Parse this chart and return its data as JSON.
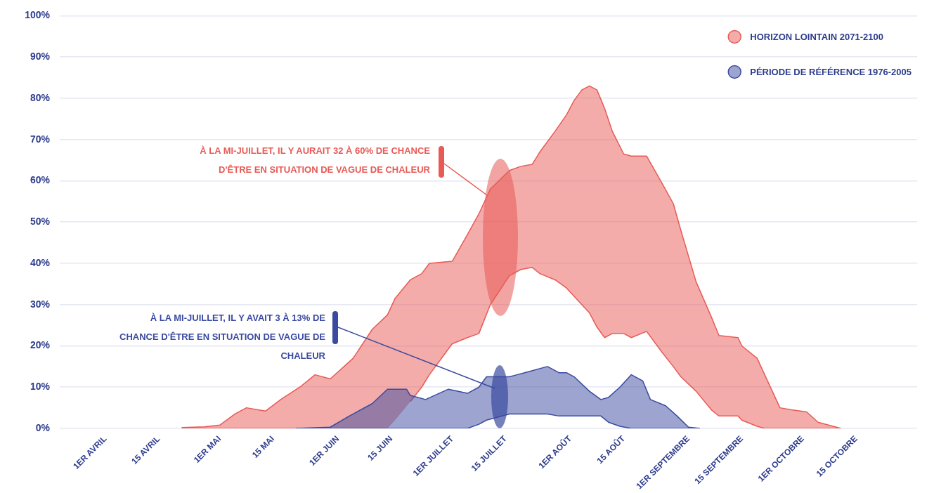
{
  "chart_data": {
    "type": "line",
    "xlim": [
      "--03-20",
      "--10-31"
    ],
    "xticks": [
      {
        "value": "--04-01",
        "label": "1ER AVRIL"
      },
      {
        "value": "--04-15",
        "label": "15 AVRIL"
      },
      {
        "value": "--05-01",
        "label": "1ER MAI"
      },
      {
        "value": "--05-15",
        "label": "15 MAI"
      },
      {
        "value": "--06-01",
        "label": "1ER JUIN"
      },
      {
        "value": "--06-15",
        "label": "15 JUIN"
      },
      {
        "value": "--07-01",
        "label": "1ER JUILLET"
      },
      {
        "value": "--07-15",
        "label": "15 JUILLET"
      },
      {
        "value": "--08-01",
        "label": "1ER AOÛT"
      },
      {
        "value": "--08-15",
        "label": "15 AOÛT"
      },
      {
        "value": "--09-01",
        "label": "1ER SEPTEMBRE"
      },
      {
        "value": "--09-15",
        "label": "15 SEPTEMBRE"
      },
      {
        "value": "--10-01",
        "label": "1ER OCTOBRE"
      },
      {
        "value": "--10-15",
        "label": "15 OCTOBRE"
      }
    ],
    "ylim": [
      0,
      100
    ],
    "yticks": [
      {
        "value": 0,
        "label": "0%"
      },
      {
        "value": 10,
        "label": "10%"
      },
      {
        "value": 20,
        "label": "20%"
      },
      {
        "value": 30,
        "label": "30%"
      },
      {
        "value": 40,
        "label": "40%"
      },
      {
        "value": 50,
        "label": "50%"
      },
      {
        "value": 60,
        "label": "60%"
      },
      {
        "value": 70,
        "label": "70%"
      },
      {
        "value": 80,
        "label": "80%"
      },
      {
        "value": 90,
        "label": "90%"
      },
      {
        "value": 100,
        "label": "100%"
      }
    ],
    "grid": "y",
    "legend": "top right",
    "series": [
      {
        "name": "HORIZON LOINTAIN 2071-2100",
        "color": "#e85a55",
        "x": [
          "--04-21",
          "--04-27",
          "--05-01",
          "--05-05",
          "--05-08",
          "--05-11",
          "--05-13",
          "--05-17",
          "--05-22",
          "--05-26",
          "--05-30",
          "--06-05",
          "--06-10",
          "--06-14",
          "--06-16",
          "--06-20",
          "--06-23",
          "--06-25",
          "--07-01",
          "--07-05",
          "--07-08",
          "--07-11",
          "--07-16",
          "--07-19",
          "--07-22",
          "--07-24",
          "--07-28",
          "--07-31",
          "--08-02",
          "--08-04",
          "--08-06",
          "--08-08",
          "--08-10",
          "--08-12",
          "--08-15",
          "--08-17",
          "--08-21",
          "--08-25",
          "--08-28",
          "--08-30",
          "--09-03",
          "--09-07",
          "--09-09",
          "--09-14",
          "--09-15",
          "--09-19",
          "--09-21",
          "--09-25",
          "--09-28",
          "--10-02",
          "--10-05",
          "--10-11"
        ],
        "values": [
          0.2,
          0.4,
          0.8,
          3.5,
          5,
          4.5,
          4.2,
          7,
          10,
          13,
          12,
          17,
          24,
          27.5,
          31.5,
          36,
          37.5,
          40,
          40.5,
          47,
          52,
          58,
          62.5,
          63.5,
          64,
          67,
          72,
          76,
          79.5,
          82,
          83,
          82,
          77.5,
          72,
          66.5,
          66,
          66,
          59.5,
          54.5,
          48,
          35.5,
          27,
          22.5,
          22,
          20,
          17,
          13,
          5,
          4.5,
          4,
          1.5,
          0
        ],
        "upper": [
          0.2,
          0.4,
          0.8,
          3.5,
          5,
          4.5,
          4.2,
          7,
          10,
          13,
          12,
          17,
          24,
          27.5,
          31.5,
          36,
          37.5,
          40,
          40.5,
          47,
          52,
          58,
          62.5,
          63.5,
          64,
          67,
          72,
          76,
          79.5,
          82,
          83,
          82,
          77.5,
          72,
          66.5,
          66,
          66,
          59.5,
          54.5,
          48,
          35.5,
          27,
          22.5,
          22,
          20,
          17,
          13,
          5,
          4.5,
          4,
          1.5,
          0
        ],
        "lower": [
          0,
          0,
          0,
          0,
          0,
          0,
          0,
          0,
          0,
          0,
          0,
          0,
          0,
          0,
          2,
          6.5,
          10,
          13,
          20.5,
          22,
          23,
          30,
          37,
          38.5,
          39,
          37.5,
          36,
          34,
          32,
          30,
          28,
          24.5,
          22,
          23,
          23,
          22,
          23.5,
          18.5,
          15,
          12.5,
          9,
          4.5,
          3,
          3,
          2,
          0.5,
          0,
          0,
          0,
          0,
          0,
          0
        ]
      },
      {
        "color": "#e85a55",
        "x": [
          "--04-21",
          "--04-27",
          "--05-01",
          "--05-05",
          "--05-08",
          "--05-11",
          "--05-13",
          "--05-17",
          "--05-22",
          "--05-26",
          "--05-30",
          "--06-05",
          "--06-10",
          "--06-14",
          "--06-16",
          "--06-20",
          "--06-23",
          "--06-25",
          "--07-01",
          "--07-05",
          "--07-08",
          "--07-11",
          "--07-16",
          "--07-19",
          "--07-22",
          "--07-24",
          "--07-28",
          "--07-31",
          "--08-02",
          "--08-04",
          "--08-06",
          "--08-08",
          "--08-10",
          "--08-12",
          "--08-15",
          "--08-17",
          "--08-21",
          "--08-25",
          "--08-28",
          "--08-30",
          "--09-03",
          "--09-07",
          "--09-09",
          "--09-14",
          "--09-15",
          "--09-19",
          "--09-21",
          "--09-25",
          "--09-28",
          "--10-02",
          "--10-05",
          "--10-11"
        ],
        "values": [
          0,
          0,
          0,
          0,
          0,
          0,
          0,
          0,
          0,
          0,
          0,
          0,
          0,
          0,
          null,
          6.5,
          10,
          13,
          20.5,
          22,
          23,
          30,
          37,
          38.5,
          39,
          37.5,
          36,
          34,
          32,
          30,
          28,
          24.5,
          22,
          23,
          23,
          22,
          23.5,
          18.5,
          15,
          12.5,
          9,
          4.5,
          3,
          3,
          2,
          0.5,
          0,
          0,
          0,
          0,
          0,
          0
        ]
      },
      {
        "name": "PÉRIODE DE RÉFÉRENCE 1976-2005",
        "color": "#3a4aa0",
        "x": [
          "--05-21",
          "--05-30",
          "--06-04",
          "--06-10",
          "--06-14",
          "--06-19",
          "--06-20",
          "--06-24",
          "--06-30",
          "--07-05",
          "--07-08",
          "--07-10",
          "--07-16",
          "--07-18",
          "--07-20",
          "--07-26",
          "--07-29",
          "--07-31",
          "--08-02",
          "--08-06",
          "--08-09",
          "--08-11",
          "--08-14",
          "--08-17",
          "--08-20",
          "--08-22",
          "--08-26",
          "--08-29",
          "--09-01",
          "--09-04"
        ],
        "values": [
          0,
          0.3,
          3,
          6,
          9.5,
          9.5,
          8,
          7,
          9.5,
          8.5,
          10,
          12.5,
          12.5,
          13,
          13.5,
          15,
          13.5,
          13.5,
          12.5,
          9,
          7,
          7.5,
          10,
          13,
          11.5,
          7,
          5.5,
          3,
          0.3,
          0
        ],
        "upper": [
          0,
          0.3,
          3,
          6,
          9.5,
          9.5,
          8,
          7,
          9.5,
          8.5,
          10,
          12.5,
          12.5,
          13,
          13.5,
          15,
          13.5,
          13.5,
          12.5,
          9,
          7,
          7.5,
          10,
          13,
          11.5,
          7,
          5.5,
          3,
          0.3,
          0
        ],
        "lower": [
          0,
          0,
          0,
          0,
          0,
          0,
          0,
          0,
          0,
          0,
          1,
          2,
          3.5,
          3.5,
          3.5,
          3.5,
          3,
          3,
          3,
          3,
          3,
          1.5,
          0.5,
          0,
          0,
          0,
          0,
          0,
          0,
          0
        ]
      },
      {
        "color": "#3a4aa0",
        "x": [
          "--05-21",
          "--05-30",
          "--06-04",
          "--06-10",
          "--06-14",
          "--06-19",
          "--06-20",
          "--06-24",
          "--06-30",
          "--07-05",
          "--07-08",
          "--07-10",
          "--07-16",
          "--07-18",
          "--07-20",
          "--07-26",
          "--07-29",
          "--07-31",
          "--08-02",
          "--08-06",
          "--08-09",
          "--08-11",
          "--08-14",
          "--08-17",
          "--08-20",
          "--08-22",
          "--08-26",
          "--08-29",
          "--09-01",
          "--09-04"
        ],
        "values": [
          0,
          0,
          0,
          0,
          0,
          0,
          0,
          0,
          0,
          0,
          1,
          2,
          3.5,
          3.5,
          3.5,
          3.5,
          3,
          3,
          3,
          3,
          3,
          1.5,
          0.5,
          0,
          0,
          0,
          0,
          0,
          0,
          0
        ]
      }
    ],
    "annotations": [
      "À LA MI-JUILLET, IL Y AURAIT 32 À 60% DE CHANCE\nD'ÊTRE EN SITUATION DE VAGUE DE CHALEUR",
      "À LA MI-JUILLET, IL Y AVAIT 3 À 13% DE\nCHANCE D'ÊTRE EN SITUATION DE VAGUE DE\nCHALEUR"
    ]
  }
}
